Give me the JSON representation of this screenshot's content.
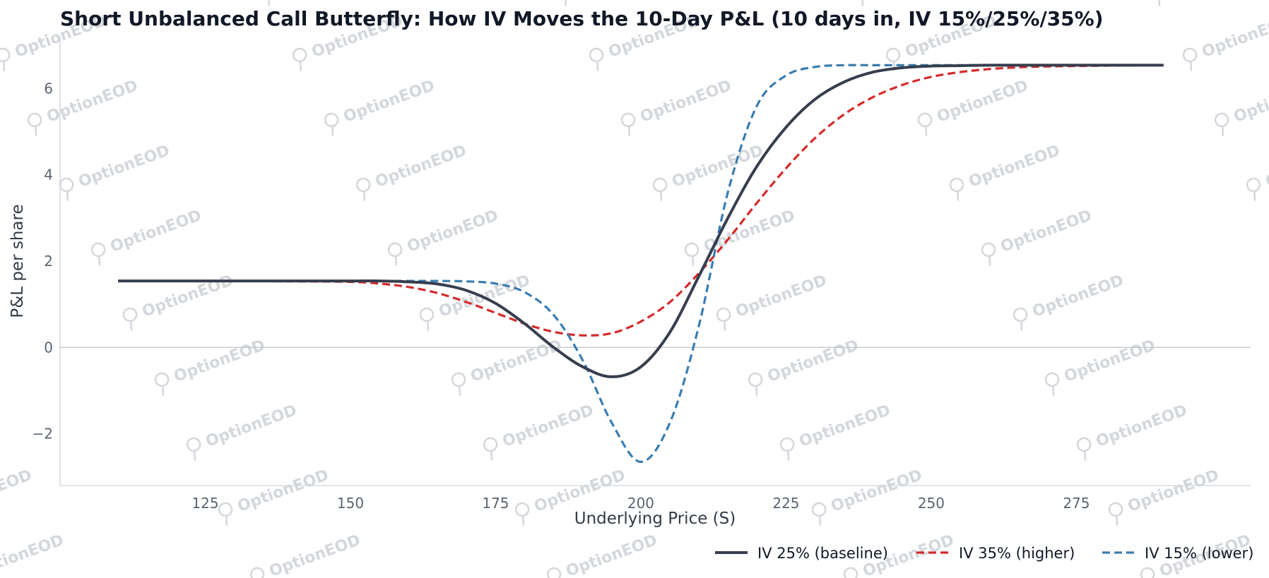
{
  "watermark": {
    "text": "OptionEOD"
  },
  "chart_data": {
    "type": "line",
    "title": "Short Unbalanced Call Butterfly: How IV Moves the 10-Day P&L (10 days in, IV 15%/25%/35%)",
    "xlabel": "Underlying Price (S)",
    "ylabel": "P&L per share",
    "xlim": [
      100,
      305
    ],
    "ylim": [
      -3.2,
      7.2
    ],
    "x_ticks": [
      125,
      150,
      175,
      200,
      225,
      250,
      275
    ],
    "y_ticks": [
      -2,
      0,
      2,
      4,
      6
    ],
    "y_tick_labels": [
      "−2",
      "0",
      "2",
      "4",
      "6"
    ],
    "zero_line": true,
    "grid": false,
    "legend_position": "bottom-right",
    "x": [
      110,
      120,
      130,
      140,
      150,
      155,
      160,
      165,
      170,
      175,
      180,
      185,
      190,
      195,
      200,
      205,
      210,
      215,
      220,
      225,
      230,
      235,
      240,
      245,
      250,
      255,
      260,
      265,
      270,
      280,
      290
    ],
    "series": [
      {
        "name": "IV 25% (baseline)",
        "color": "#363e4e",
        "dash": "solid",
        "values": [
          1.54,
          1.54,
          1.54,
          1.54,
          1.54,
          1.54,
          1.52,
          1.47,
          1.32,
          1.02,
          0.55,
          0.0,
          -0.45,
          -0.68,
          -0.45,
          0.35,
          1.65,
          3.0,
          4.2,
          5.1,
          5.75,
          6.15,
          6.38,
          6.48,
          6.52,
          6.53,
          6.54,
          6.54,
          6.54,
          6.54,
          6.54
        ]
      },
      {
        "name": "IV 35% (higher)",
        "color": "#d42a2a",
        "dash": "dashed",
        "values": [
          1.54,
          1.54,
          1.54,
          1.53,
          1.52,
          1.48,
          1.4,
          1.26,
          1.05,
          0.8,
          0.55,
          0.36,
          0.28,
          0.33,
          0.6,
          1.05,
          1.72,
          2.5,
          3.35,
          4.15,
          4.85,
          5.4,
          5.8,
          6.08,
          6.27,
          6.38,
          6.45,
          6.49,
          6.51,
          6.53,
          6.54
        ]
      },
      {
        "name": "IV 15% (lower)",
        "color": "#3a7cb0",
        "dash": "dashed",
        "values": [
          1.54,
          1.54,
          1.54,
          1.54,
          1.54,
          1.54,
          1.54,
          1.54,
          1.53,
          1.48,
          1.28,
          0.75,
          -0.3,
          -1.75,
          -2.65,
          -1.75,
          0.5,
          3.6,
          5.6,
          6.3,
          6.5,
          6.54,
          6.54,
          6.54,
          6.54,
          6.54,
          6.54,
          6.54,
          6.54,
          6.54,
          6.54
        ]
      }
    ]
  }
}
